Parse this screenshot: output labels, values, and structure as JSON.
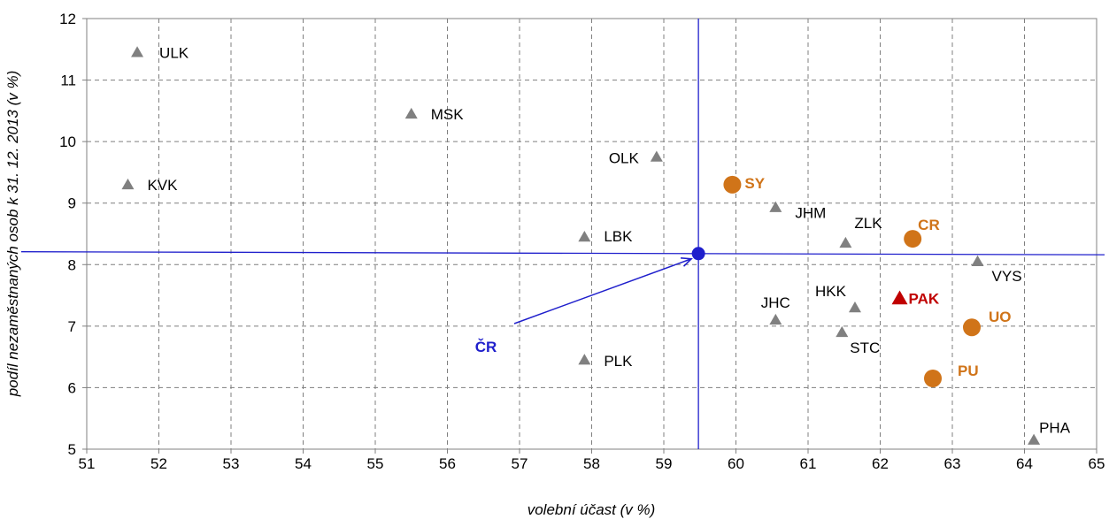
{
  "chart_data": {
    "type": "scatter",
    "xlabel": "volební účast (v %)",
    "ylabel": "podíl nezaměstnaných osob k 31. 12. 2013 (v %)",
    "xlim": [
      51,
      65
    ],
    "ylim": [
      5,
      12
    ],
    "x_ticks": [
      "51",
      "52",
      "53",
      "54",
      "55",
      "56",
      "57",
      "58",
      "59",
      "60",
      "61",
      "62",
      "63",
      "64",
      "65"
    ],
    "y_ticks": [
      "5",
      "6",
      "7",
      "8",
      "9",
      "10",
      "11",
      "12"
    ],
    "grid": "dashed",
    "reference": {
      "x": 59.48,
      "y": 8.18,
      "label": "ČR",
      "color": "#1f1fcc"
    },
    "colors": {
      "region": "#808080",
      "district": "#d07419",
      "highlight": "#c00000",
      "reference": "#1f1fcc"
    },
    "points": [
      {
        "label": "ULK",
        "x": 51.7,
        "y": 11.45,
        "group": "region"
      },
      {
        "label": "MSK",
        "x": 55.5,
        "y": 10.45,
        "group": "region"
      },
      {
        "label": "KVK",
        "x": 51.57,
        "y": 9.3,
        "group": "region"
      },
      {
        "label": "OLK",
        "x": 58.9,
        "y": 9.75,
        "group": "region"
      },
      {
        "label": "JHM",
        "x": 60.55,
        "y": 8.93,
        "group": "region"
      },
      {
        "label": "LBK",
        "x": 57.9,
        "y": 8.45,
        "group": "region"
      },
      {
        "label": "ZLK",
        "x": 61.52,
        "y": 8.35,
        "group": "region"
      },
      {
        "label": "VYS",
        "x": 63.35,
        "y": 8.05,
        "group": "region"
      },
      {
        "label": "HKK",
        "x": 61.65,
        "y": 7.3,
        "group": "region"
      },
      {
        "label": "JHC",
        "x": 60.55,
        "y": 7.1,
        "group": "region"
      },
      {
        "label": "STC",
        "x": 61.47,
        "y": 6.9,
        "group": "region"
      },
      {
        "label": "PLK",
        "x": 57.9,
        "y": 6.45,
        "group": "region"
      },
      {
        "label": "PHA",
        "x": 64.13,
        "y": 5.15,
        "group": "region"
      },
      {
        "label": "PAK",
        "x": 62.27,
        "y": 7.45,
        "group": "highlight"
      },
      {
        "label": "SY",
        "x": 59.95,
        "y": 9.3,
        "group": "district"
      },
      {
        "label": "CR",
        "x": 62.45,
        "y": 8.42,
        "group": "district"
      },
      {
        "label": "UO",
        "x": 63.27,
        "y": 6.98,
        "group": "district"
      },
      {
        "label": "PU",
        "x": 62.73,
        "y": 6.15,
        "group": "district"
      }
    ]
  }
}
